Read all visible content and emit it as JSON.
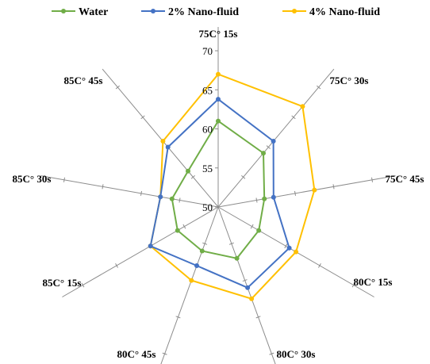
{
  "chart_data": {
    "type": "radar",
    "categories": [
      "75C° 15s",
      "75C° 30s",
      "75C° 45s",
      "80C° 15s",
      "80C° 30s",
      "80C° 45s",
      "85C° 15s",
      "85C° 30s",
      "85C° 45s"
    ],
    "series": [
      {
        "name": "Water",
        "color": "#70AD47",
        "values": [
          61,
          59,
          56,
          56,
          57,
          56,
          56,
          56,
          56
        ]
      },
      {
        "name": "2% Nano-fluid",
        "color": "#4472C4",
        "values": [
          63.8,
          61,
          57.2,
          60.5,
          61,
          58,
          60,
          57.5,
          60
        ]
      },
      {
        "name": "4% Nano-fluid",
        "color": "#FFC000",
        "values": [
          67,
          66.8,
          62.5,
          61.5,
          62.5,
          60,
          60,
          57.5,
          61
        ]
      }
    ],
    "rlim": [
      50,
      70
    ],
    "ticks": [
      "50",
      "55",
      "60",
      "65",
      "70"
    ],
    "grid": true,
    "legend_position": "top"
  }
}
